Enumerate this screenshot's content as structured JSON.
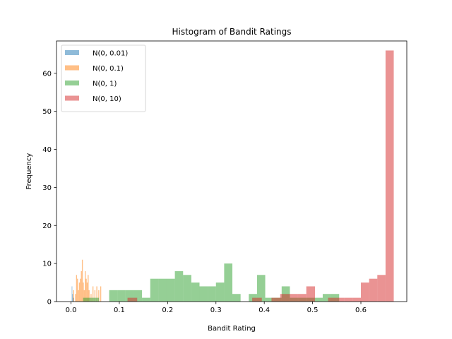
{
  "chart_data": {
    "type": "histogram",
    "title": "Histogram of Bandit Ratings",
    "xlabel": "Bandit Rating",
    "ylabel": "Frequency",
    "xlim": [
      -0.03,
      0.695
    ],
    "ylim": [
      0,
      68.5
    ],
    "xticks": [
      0.0,
      0.1,
      0.2,
      0.3,
      0.4,
      0.5,
      0.6
    ],
    "xtick_labels": [
      "0.0",
      "0.1",
      "0.2",
      "0.3",
      "0.4",
      "0.5",
      "0.6"
    ],
    "yticks": [
      0,
      10,
      20,
      30,
      40,
      50,
      60
    ],
    "ytick_labels": [
      "0",
      "10",
      "20",
      "30",
      "40",
      "50",
      "60"
    ],
    "grid": false,
    "legend_position": "top-left",
    "series": [
      {
        "name": "N(0, 0.01)",
        "color": "#1f77b4",
        "opacity": 0.5,
        "bins": [
          {
            "x0": 0.0015,
            "x1": 0.0027,
            "count": 4
          },
          {
            "x0": 0.0027,
            "x1": 0.0039,
            "count": 2
          },
          {
            "x0": 0.0039,
            "x1": 0.0051,
            "count": 1
          },
          {
            "x0": 0.0051,
            "x1": 0.0063,
            "count": 1
          }
        ]
      },
      {
        "name": "N(0, 0.1)",
        "color": "#ff7f0e",
        "opacity": 0.5,
        "bins": [
          {
            "x0": 0.0045,
            "x1": 0.0065,
            "count": 3
          },
          {
            "x0": 0.0085,
            "x1": 0.0105,
            "count": 2
          },
          {
            "x0": 0.0105,
            "x1": 0.0125,
            "count": 7
          },
          {
            "x0": 0.0125,
            "x1": 0.0145,
            "count": 6
          },
          {
            "x0": 0.0145,
            "x1": 0.0165,
            "count": 3
          },
          {
            "x0": 0.0165,
            "x1": 0.0185,
            "count": 5
          },
          {
            "x0": 0.0185,
            "x1": 0.0205,
            "count": 6
          },
          {
            "x0": 0.0205,
            "x1": 0.0225,
            "count": 8
          },
          {
            "x0": 0.0225,
            "x1": 0.0245,
            "count": 11
          },
          {
            "x0": 0.0245,
            "x1": 0.0265,
            "count": 5
          },
          {
            "x0": 0.0265,
            "x1": 0.0285,
            "count": 3
          },
          {
            "x0": 0.0285,
            "x1": 0.0305,
            "count": 8
          },
          {
            "x0": 0.0305,
            "x1": 0.0325,
            "count": 6
          },
          {
            "x0": 0.0325,
            "x1": 0.0345,
            "count": 5
          },
          {
            "x0": 0.0345,
            "x1": 0.0365,
            "count": 7
          },
          {
            "x0": 0.0365,
            "x1": 0.0385,
            "count": 3
          },
          {
            "x0": 0.0405,
            "x1": 0.0425,
            "count": 2
          },
          {
            "x0": 0.0445,
            "x1": 0.0465,
            "count": 4
          },
          {
            "x0": 0.0485,
            "x1": 0.0505,
            "count": 3
          },
          {
            "x0": 0.0525,
            "x1": 0.0545,
            "count": 4
          },
          {
            "x0": 0.0565,
            "x1": 0.0585,
            "count": 3
          },
          {
            "x0": 0.0605,
            "x1": 0.0625,
            "count": 4
          }
        ]
      },
      {
        "name": "N(0, 1)",
        "color": "#2ca02c",
        "opacity": 0.5,
        "bins": [
          {
            "x0": 0.025,
            "x1": 0.042,
            "count": 1
          },
          {
            "x0": 0.042,
            "x1": 0.058,
            "count": 1
          },
          {
            "x0": 0.079,
            "x1": 0.096,
            "count": 3
          },
          {
            "x0": 0.096,
            "x1": 0.113,
            "count": 3
          },
          {
            "x0": 0.113,
            "x1": 0.13,
            "count": 3
          },
          {
            "x0": 0.13,
            "x1": 0.147,
            "count": 3
          },
          {
            "x0": 0.147,
            "x1": 0.164,
            "count": 1
          },
          {
            "x0": 0.164,
            "x1": 0.181,
            "count": 6
          },
          {
            "x0": 0.181,
            "x1": 0.198,
            "count": 6
          },
          {
            "x0": 0.198,
            "x1": 0.215,
            "count": 6
          },
          {
            "x0": 0.215,
            "x1": 0.232,
            "count": 8
          },
          {
            "x0": 0.232,
            "x1": 0.249,
            "count": 7
          },
          {
            "x0": 0.249,
            "x1": 0.266,
            "count": 5
          },
          {
            "x0": 0.266,
            "x1": 0.283,
            "count": 4
          },
          {
            "x0": 0.283,
            "x1": 0.3,
            "count": 4
          },
          {
            "x0": 0.3,
            "x1": 0.317,
            "count": 5
          },
          {
            "x0": 0.317,
            "x1": 0.334,
            "count": 10
          },
          {
            "x0": 0.334,
            "x1": 0.351,
            "count": 2
          },
          {
            "x0": 0.368,
            "x1": 0.385,
            "count": 2
          },
          {
            "x0": 0.385,
            "x1": 0.402,
            "count": 7
          },
          {
            "x0": 0.402,
            "x1": 0.419,
            "count": 1
          },
          {
            "x0": 0.419,
            "x1": 0.436,
            "count": 1
          },
          {
            "x0": 0.436,
            "x1": 0.453,
            "count": 4
          },
          {
            "x0": 0.453,
            "x1": 0.47,
            "count": 1
          },
          {
            "x0": 0.47,
            "x1": 0.487,
            "count": 1
          },
          {
            "x0": 0.487,
            "x1": 0.504,
            "count": 1
          },
          {
            "x0": 0.504,
            "x1": 0.521,
            "count": 1
          },
          {
            "x0": 0.521,
            "x1": 0.538,
            "count": 2
          },
          {
            "x0": 0.538,
            "x1": 0.555,
            "count": 2
          }
        ]
      },
      {
        "name": "N(0, 10)",
        "color": "#d62728",
        "opacity": 0.5,
        "bins": [
          {
            "x0": 0.117,
            "x1": 0.137,
            "count": 1
          },
          {
            "x0": 0.375,
            "x1": 0.395,
            "count": 1
          },
          {
            "x0": 0.415,
            "x1": 0.433,
            "count": 1
          },
          {
            "x0": 0.433,
            "x1": 0.451,
            "count": 2
          },
          {
            "x0": 0.451,
            "x1": 0.469,
            "count": 2
          },
          {
            "x0": 0.469,
            "x1": 0.487,
            "count": 2
          },
          {
            "x0": 0.487,
            "x1": 0.505,
            "count": 4
          },
          {
            "x0": 0.532,
            "x1": 0.549,
            "count": 1
          },
          {
            "x0": 0.549,
            "x1": 0.566,
            "count": 1
          },
          {
            "x0": 0.566,
            "x1": 0.583,
            "count": 1
          },
          {
            "x0": 0.583,
            "x1": 0.6,
            "count": 1
          },
          {
            "x0": 0.6,
            "x1": 0.617,
            "count": 5
          },
          {
            "x0": 0.617,
            "x1": 0.634,
            "count": 6
          },
          {
            "x0": 0.634,
            "x1": 0.651,
            "count": 7
          },
          {
            "x0": 0.651,
            "x1": 0.668,
            "count": 66
          }
        ]
      }
    ]
  }
}
